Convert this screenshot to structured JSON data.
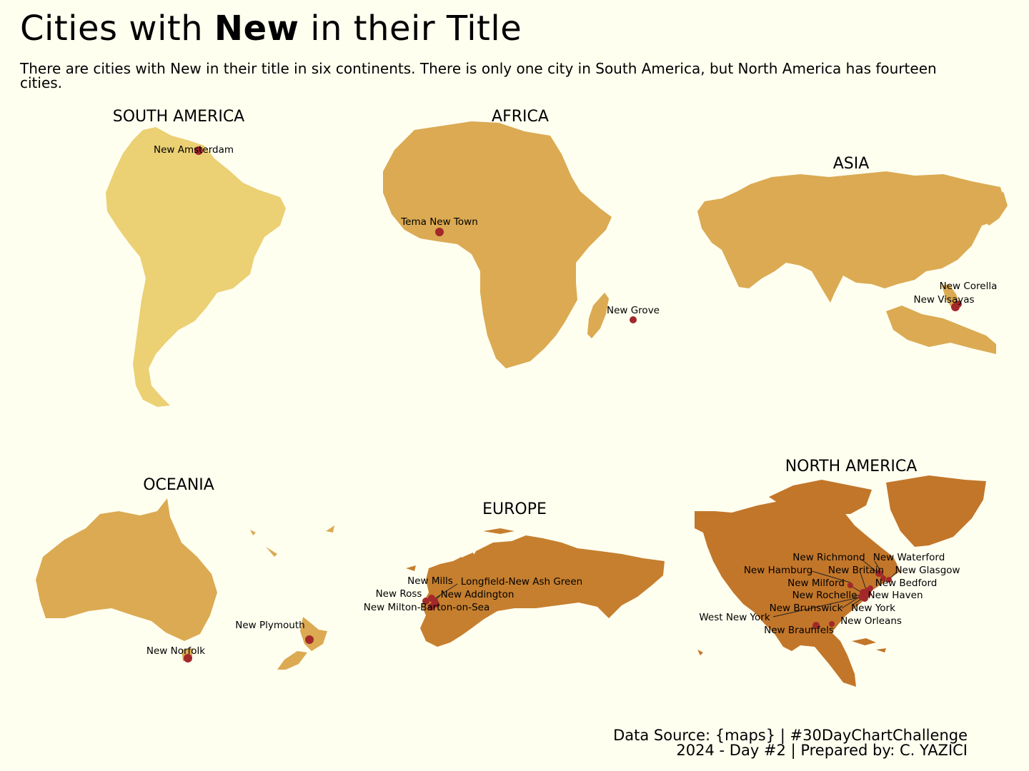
{
  "title": {
    "before": "Cities with ",
    "bold": "New",
    "after": " in their Title"
  },
  "subtitle": "There are cities with New in their title in six continents. There is only one city in South America, but North America has fourteen cities.",
  "caption": {
    "line1": "Data Source: {maps} | #30DayChartChallenge",
    "line2": "2024 - Day #2 | Prepared by: C. YAZICI"
  },
  "colors": {
    "background": "#fffff0",
    "south_america": "#ebd074",
    "africa": "#dbaa52",
    "asia": "#dbaa52",
    "oceania": "#dbaa52",
    "europe": "#c57f2e",
    "north_america": "#c2762a",
    "city_dot": "#a3282a"
  },
  "continents": {
    "south_america": {
      "name": "SOUTH AMERICA",
      "city_count": 1,
      "cities": [
        "New Amsterdam"
      ]
    },
    "africa": {
      "name": "AFRICA",
      "cities": [
        "Tema New Town",
        "New Grove"
      ]
    },
    "asia": {
      "name": "ASIA",
      "cities": [
        "New Corella",
        "New Visayas"
      ]
    },
    "oceania": {
      "name": "OCEANIA",
      "cities": [
        "New Plymouth",
        "New Norfolk"
      ]
    },
    "europe": {
      "name": "EUROPE",
      "cities": [
        "New Mills",
        "Longfield-New Ash Green",
        "New Ross",
        "New Addington",
        "New Milton-Barton-on-Sea"
      ]
    },
    "north_america": {
      "name": "NORTH AMERICA",
      "city_count": 14,
      "cities": [
        "New Richmond",
        "New Waterford",
        "New Hamburg",
        "New Britain",
        "New Glasgow",
        "New Milford",
        "New Bedford",
        "New Rochelle",
        "New Haven",
        "New Brunswick",
        "New York",
        "West New York",
        "New Orleans",
        "New Braunfels"
      ]
    }
  }
}
